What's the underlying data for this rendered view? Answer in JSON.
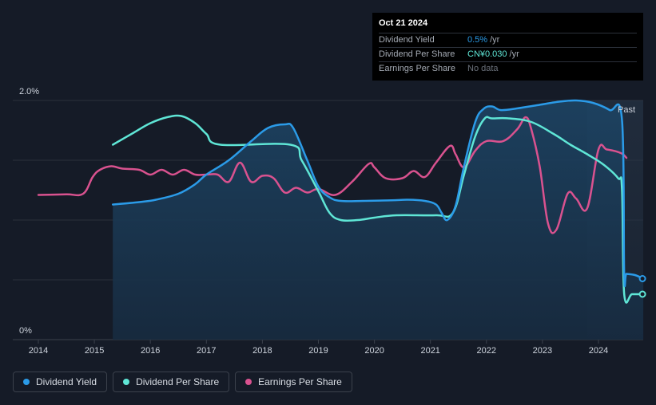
{
  "chart_data": {
    "type": "line",
    "y_labels": {
      "top": "2.0%",
      "bottom": "0%"
    },
    "x_ticks": [
      "2014",
      "2015",
      "2016",
      "2017",
      "2018",
      "2019",
      "2020",
      "2021",
      "2022",
      "2023",
      "2024"
    ],
    "past_label": "Past",
    "series": [
      {
        "name": "Dividend Yield",
        "color": "#2b9be8",
        "points": [
          [
            2015.33,
            1.13
          ],
          [
            2015.8,
            1.15
          ],
          [
            2016.1,
            1.17
          ],
          [
            2016.5,
            1.22
          ],
          [
            2016.8,
            1.3
          ],
          [
            2017.0,
            1.38
          ],
          [
            2017.4,
            1.5
          ],
          [
            2017.8,
            1.66
          ],
          [
            2018.1,
            1.77
          ],
          [
            2018.4,
            1.8
          ],
          [
            2018.55,
            1.77
          ],
          [
            2018.8,
            1.5
          ],
          [
            2019.0,
            1.28
          ],
          [
            2019.2,
            1.19
          ],
          [
            2019.4,
            1.16
          ],
          [
            2019.8,
            1.16
          ],
          [
            2020.3,
            1.165
          ],
          [
            2020.6,
            1.17
          ],
          [
            2020.9,
            1.16
          ],
          [
            2021.1,
            1.13
          ],
          [
            2021.2,
            1.06
          ],
          [
            2021.3,
            1.0
          ],
          [
            2021.45,
            1.12
          ],
          [
            2021.6,
            1.45
          ],
          [
            2021.8,
            1.82
          ],
          [
            2021.95,
            1.93
          ],
          [
            2022.1,
            1.95
          ],
          [
            2022.25,
            1.92
          ],
          [
            2022.5,
            1.93
          ],
          [
            2022.9,
            1.96
          ],
          [
            2023.3,
            1.99
          ],
          [
            2023.6,
            2.0
          ],
          [
            2023.9,
            1.98
          ],
          [
            2024.2,
            1.92
          ],
          [
            2024.42,
            1.84
          ],
          [
            2024.46,
            0.55
          ],
          [
            2024.5,
            0.55
          ],
          [
            2024.65,
            0.54
          ],
          [
            2024.8,
            0.51
          ]
        ]
      },
      {
        "name": "Dividend Per Share",
        "color": "#5fe6d6",
        "points": [
          [
            2015.33,
            1.63
          ],
          [
            2015.7,
            1.73
          ],
          [
            2016.0,
            1.81
          ],
          [
            2016.3,
            1.86
          ],
          [
            2016.55,
            1.87
          ],
          [
            2016.8,
            1.81
          ],
          [
            2017.0,
            1.72
          ],
          [
            2017.25,
            1.63
          ],
          [
            2018.5,
            1.63
          ],
          [
            2018.7,
            1.5
          ],
          [
            2019.0,
            1.24
          ],
          [
            2019.2,
            1.06
          ],
          [
            2019.4,
            1.0
          ],
          [
            2019.7,
            1.0
          ],
          [
            2020.0,
            1.02
          ],
          [
            2020.4,
            1.04
          ],
          [
            2021.1,
            1.04
          ],
          [
            2021.4,
            1.06
          ],
          [
            2021.6,
            1.38
          ],
          [
            2021.8,
            1.7
          ],
          [
            2021.97,
            1.85
          ],
          [
            2022.1,
            1.85
          ],
          [
            2022.4,
            1.85
          ],
          [
            2022.8,
            1.82
          ],
          [
            2023.2,
            1.72
          ],
          [
            2023.5,
            1.63
          ],
          [
            2023.8,
            1.55
          ],
          [
            2024.1,
            1.46
          ],
          [
            2024.35,
            1.35
          ],
          [
            2024.42,
            1.26
          ],
          [
            2024.46,
            0.38
          ],
          [
            2024.6,
            0.38
          ],
          [
            2024.8,
            0.38
          ]
        ]
      },
      {
        "name": "Earnings Per Share",
        "color": "#d9528f",
        "points": [
          [
            2014.0,
            1.21
          ],
          [
            2014.5,
            1.215
          ],
          [
            2014.8,
            1.22
          ],
          [
            2014.97,
            1.36
          ],
          [
            2015.1,
            1.42
          ],
          [
            2015.3,
            1.45
          ],
          [
            2015.5,
            1.43
          ],
          [
            2015.8,
            1.42
          ],
          [
            2016.0,
            1.38
          ],
          [
            2016.2,
            1.42
          ],
          [
            2016.4,
            1.38
          ],
          [
            2016.6,
            1.42
          ],
          [
            2016.8,
            1.38
          ],
          [
            2017.0,
            1.38
          ],
          [
            2017.2,
            1.38
          ],
          [
            2017.4,
            1.32
          ],
          [
            2017.6,
            1.48
          ],
          [
            2017.8,
            1.32
          ],
          [
            2018.0,
            1.37
          ],
          [
            2018.2,
            1.35
          ],
          [
            2018.4,
            1.23
          ],
          [
            2018.6,
            1.27
          ],
          [
            2018.8,
            1.23
          ],
          [
            2019.0,
            1.26
          ],
          [
            2019.3,
            1.21
          ],
          [
            2019.6,
            1.32
          ],
          [
            2019.9,
            1.47
          ],
          [
            2020.0,
            1.44
          ],
          [
            2020.2,
            1.35
          ],
          [
            2020.5,
            1.35
          ],
          [
            2020.7,
            1.41
          ],
          [
            2020.9,
            1.36
          ],
          [
            2021.1,
            1.48
          ],
          [
            2021.35,
            1.62
          ],
          [
            2021.45,
            1.55
          ],
          [
            2021.6,
            1.44
          ],
          [
            2021.8,
            1.58
          ],
          [
            2022.0,
            1.66
          ],
          [
            2022.3,
            1.66
          ],
          [
            2022.55,
            1.76
          ],
          [
            2022.7,
            1.86
          ],
          [
            2022.8,
            1.76
          ],
          [
            2022.95,
            1.45
          ],
          [
            2023.1,
            0.97
          ],
          [
            2023.25,
            0.92
          ],
          [
            2023.45,
            1.22
          ],
          [
            2023.6,
            1.18
          ],
          [
            2023.8,
            1.1
          ],
          [
            2024.0,
            1.59
          ],
          [
            2024.15,
            1.59
          ],
          [
            2024.4,
            1.56
          ],
          [
            2024.5,
            1.52
          ]
        ]
      }
    ],
    "ylim": [
      0,
      2.0
    ],
    "xlim": [
      2013.65,
      2024.83
    ],
    "forecast_start": 2023.8,
    "grid": true
  },
  "tooltip": {
    "date": "Oct 21 2024",
    "rows": [
      {
        "label": "Dividend Yield",
        "value": "0.5%",
        "unit": "/yr",
        "color": "#2b9be8"
      },
      {
        "label": "Dividend Per Share",
        "value": "CN¥0.030",
        "unit": "/yr",
        "color": "#5fe6d6"
      },
      {
        "label": "Earnings Per Share",
        "value": "No data",
        "unit": "",
        "color": "#6c727c"
      }
    ]
  },
  "legend": [
    {
      "label": "Dividend Yield",
      "color": "#2b9be8"
    },
    {
      "label": "Dividend Per Share",
      "color": "#5fe6d6"
    },
    {
      "label": "Earnings Per Share",
      "color": "#d9528f"
    }
  ]
}
